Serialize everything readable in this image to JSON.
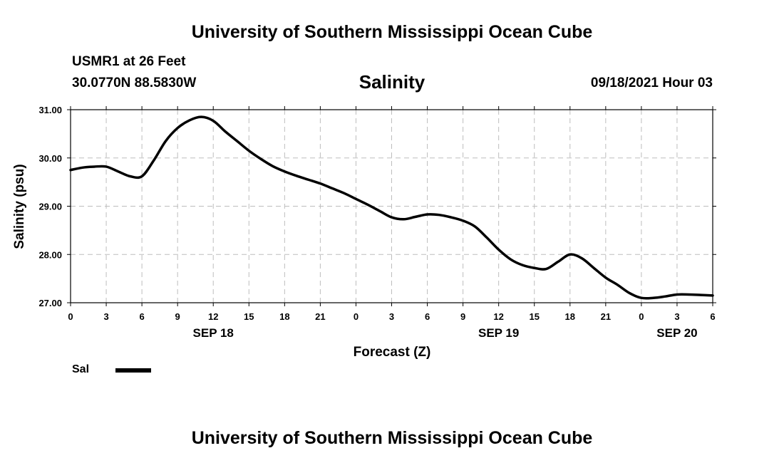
{
  "header": {
    "title_top": "University of Southern Mississippi Ocean Cube",
    "station": "USMR1 at 26 Feet",
    "coords": "30.0770N  88.5830W",
    "datetime": "09/18/2021 Hour 03"
  },
  "footer": {
    "title_bottom": "University of Southern Mississippi Ocean Cube"
  },
  "legend": {
    "label": "Sal",
    "color": "#000000"
  },
  "chart_data": {
    "type": "line",
    "title": "Salinity",
    "xlabel": "Forecast (Z)",
    "ylabel": "Salinity (psu)",
    "ylim": [
      27.0,
      31.0
    ],
    "xlim": [
      0,
      54
    ],
    "grid": true,
    "y_ticks": [
      "27.00",
      "28.00",
      "29.00",
      "30.00",
      "31.00"
    ],
    "x_ticks": [
      "0",
      "3",
      "6",
      "9",
      "12",
      "15",
      "18",
      "21",
      "0",
      "3",
      "6",
      "9",
      "12",
      "15",
      "18",
      "21",
      "0",
      "3",
      "6"
    ],
    "date_labels": [
      {
        "label": "SEP 18",
        "hour": 12
      },
      {
        "label": "SEP 19",
        "hour": 36
      },
      {
        "label": "SEP 20",
        "hour": 51
      }
    ],
    "series": [
      {
        "name": "Sal",
        "x": [
          0,
          1,
          2,
          3,
          4,
          5,
          6,
          7,
          8,
          9,
          10,
          11,
          12,
          13,
          14,
          15,
          16,
          17,
          18,
          19,
          20,
          21,
          22,
          23,
          24,
          25,
          26,
          27,
          28,
          29,
          30,
          31,
          32,
          33,
          34,
          35,
          36,
          37,
          38,
          39,
          40,
          41,
          42,
          43,
          44,
          45,
          46,
          47,
          48,
          49,
          50,
          51,
          52,
          53,
          54
        ],
        "values": [
          29.75,
          29.8,
          29.82,
          29.82,
          29.72,
          29.62,
          29.62,
          29.95,
          30.35,
          30.62,
          30.78,
          30.85,
          30.77,
          30.55,
          30.35,
          30.15,
          29.98,
          29.83,
          29.72,
          29.63,
          29.55,
          29.47,
          29.37,
          29.27,
          29.15,
          29.03,
          28.9,
          28.77,
          28.73,
          28.78,
          28.83,
          28.82,
          28.77,
          28.7,
          28.58,
          28.35,
          28.1,
          27.9,
          27.78,
          27.72,
          27.7,
          27.85,
          28.0,
          27.92,
          27.72,
          27.52,
          27.37,
          27.2,
          27.1,
          27.1,
          27.13,
          27.17,
          27.17,
          27.16,
          27.15
        ]
      }
    ]
  }
}
